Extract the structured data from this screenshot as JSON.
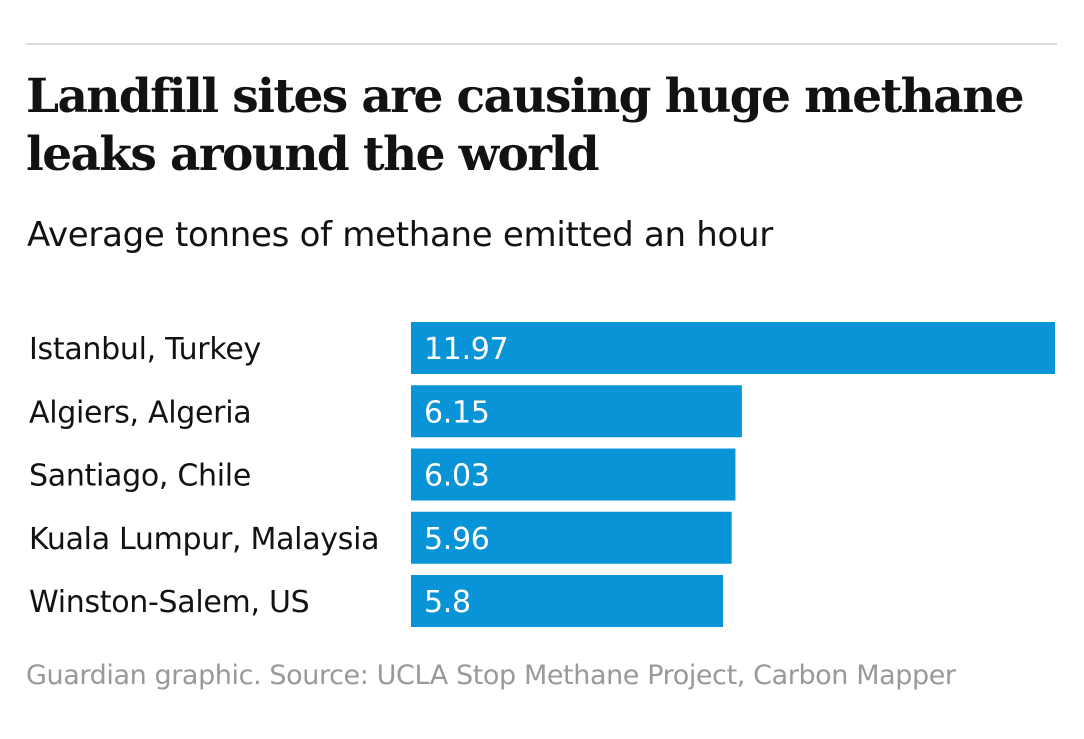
{
  "header": {
    "title": "Landfill sites are causing huge methane leaks around the world",
    "subtitle": "Average tonnes of methane emitted an hour"
  },
  "footer": {
    "source": "Guardian graphic. Source: UCLA Stop Methane Project, Carbon Mapper"
  },
  "colors": {
    "bar": "#0a94d8",
    "bar_label": "#ffffff",
    "category_label": "#121212"
  },
  "chart_data": {
    "type": "bar",
    "orientation": "horizontal",
    "title": "Landfill sites are causing huge methane leaks around the world",
    "subtitle": "Average tonnes of methane emitted an hour",
    "categories": [
      "Istanbul, Turkey",
      "Algiers, Algeria",
      "Santiago, Chile",
      "Kuala Lumpur, Malaysia",
      "Winston-Salem, US"
    ],
    "values": [
      11.97,
      6.15,
      6.03,
      5.96,
      5.8
    ],
    "data_labels": [
      "11.97",
      "6.15",
      "6.03",
      "5.96",
      "5.8"
    ],
    "xlabel": "",
    "ylabel": "",
    "xlim": [
      0,
      11.97
    ],
    "grid": false,
    "legend": "none"
  }
}
